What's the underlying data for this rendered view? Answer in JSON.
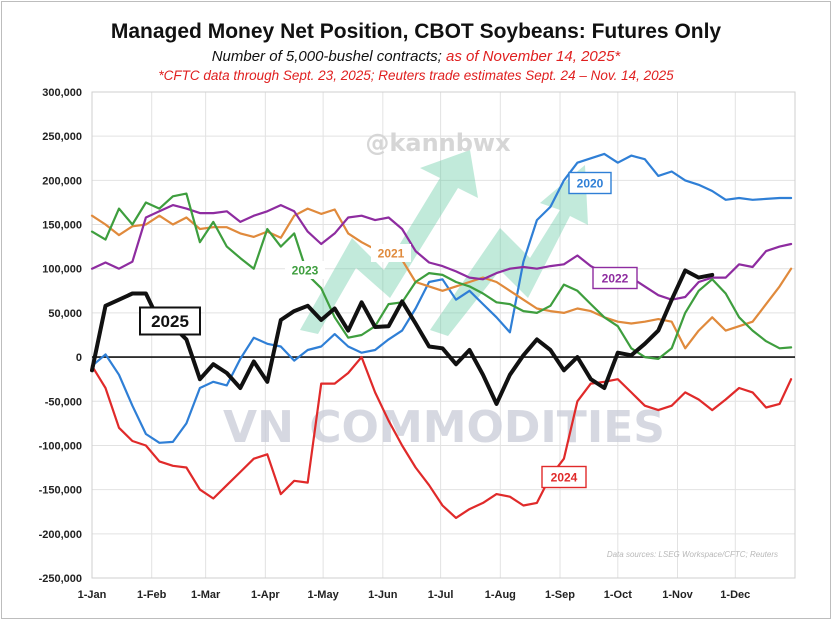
{
  "chart_data": {
    "type": "line",
    "title": "Managed Money Net Position, CBOT Soybeans: Futures Only",
    "subtitle_black": "Number of 5,000-bushel contracts;",
    "subtitle_red": "as of November 14, 2025*",
    "note": "*CFTC data through Sept. 23, 2025; Reuters trade estimates Sept. 24 – Nov. 14, 2025",
    "source": "Data sources: LSEG Workspace/CFTC; Reuters",
    "watermark_handle": "@kannbwx",
    "watermark_brand": "VN COMMODITIES",
    "ylim": [
      -250000,
      300000
    ],
    "yticks": [
      -250000,
      -200000,
      -150000,
      -100000,
      -50000,
      0,
      50000,
      100000,
      150000,
      200000,
      250000,
      300000
    ],
    "ytick_labels": [
      "-250,000",
      "-200,000",
      "-150,000",
      "-100,000",
      "-50,000",
      "0",
      "50,000",
      "100,000",
      "150,000",
      "200,000",
      "250,000",
      "300,000"
    ],
    "xlim_day": [
      0,
      365
    ],
    "xticks": [
      {
        "day": 0,
        "label": "1-Jan"
      },
      {
        "day": 31,
        "label": "1-Feb"
      },
      {
        "day": 59,
        "label": "1-Mar"
      },
      {
        "day": 90,
        "label": "1-Apr"
      },
      {
        "day": 120,
        "label": "1-May"
      },
      {
        "day": 151,
        "label": "1-Jun"
      },
      {
        "day": 181,
        "label": "1-Jul"
      },
      {
        "day": 212,
        "label": "1-Aug"
      },
      {
        "day": 243,
        "label": "1-Sep"
      },
      {
        "day": 273,
        "label": "1-Oct"
      },
      {
        "day": 304,
        "label": "1-Nov"
      },
      {
        "day": 334,
        "label": "1-Dec"
      }
    ],
    "series": [
      {
        "name": "2020",
        "color": "#2f7fd6",
        "width": 2.2,
        "x": [
          0,
          7,
          14,
          21,
          28,
          35,
          42,
          49,
          56,
          63,
          70,
          77,
          84,
          91,
          98,
          105,
          112,
          119,
          126,
          133,
          140,
          147,
          154,
          161,
          168,
          175,
          182,
          189,
          196,
          203,
          210,
          217,
          224,
          231,
          238,
          245,
          252,
          259,
          266,
          273,
          280,
          287,
          294,
          301,
          308,
          315,
          322,
          329,
          336,
          343,
          350,
          357,
          363
        ],
        "y": [
          -10000,
          3000,
          -20000,
          -55000,
          -87000,
          -97000,
          -96000,
          -75000,
          -35000,
          -28000,
          -32000,
          -2000,
          22000,
          15000,
          12000,
          -4000,
          8000,
          12000,
          26000,
          12000,
          5000,
          8000,
          20000,
          30000,
          55000,
          85000,
          88000,
          65000,
          75000,
          60000,
          45000,
          28000,
          108000,
          155000,
          170000,
          200000,
          220000,
          225000,
          230000,
          220000,
          228000,
          224000,
          205000,
          210000,
          200000,
          195000,
          188000,
          178000,
          180000,
          178000,
          179000,
          180000,
          180000
        ]
      },
      {
        "name": "2021",
        "color": "#e08a3c",
        "width": 2.2,
        "x": [
          0,
          7,
          14,
          21,
          28,
          35,
          42,
          49,
          56,
          63,
          70,
          77,
          84,
          91,
          98,
          105,
          112,
          119,
          126,
          133,
          140,
          147,
          154,
          161,
          168,
          175,
          182,
          189,
          196,
          203,
          210,
          217,
          224,
          231,
          238,
          245,
          252,
          259,
          266,
          273,
          280,
          287,
          294,
          301,
          308,
          315,
          322,
          329,
          336,
          343,
          350,
          357,
          363
        ],
        "y": [
          160000,
          150000,
          138000,
          148000,
          150000,
          160000,
          150000,
          158000,
          145000,
          147000,
          147000,
          140000,
          136000,
          142000,
          135000,
          160000,
          168000,
          162000,
          167000,
          140000,
          130000,
          122000,
          118000,
          110000,
          85000,
          80000,
          75000,
          80000,
          85000,
          90000,
          85000,
          75000,
          65000,
          55000,
          52000,
          50000,
          55000,
          52000,
          45000,
          40000,
          38000,
          40000,
          43000,
          40000,
          10000,
          30000,
          45000,
          30000,
          35000,
          40000,
          60000,
          80000,
          100000
        ]
      },
      {
        "name": "2022",
        "color": "#8e2ca0",
        "width": 2.2,
        "x": [
          0,
          7,
          14,
          21,
          28,
          35,
          42,
          49,
          56,
          63,
          70,
          77,
          84,
          91,
          98,
          105,
          112,
          119,
          126,
          133,
          140,
          147,
          154,
          161,
          168,
          175,
          182,
          189,
          196,
          203,
          210,
          217,
          224,
          231,
          238,
          245,
          252,
          259,
          266,
          273,
          280,
          287,
          294,
          301,
          308,
          315,
          322,
          329,
          336,
          343,
          350,
          357,
          363
        ],
        "y": [
          100000,
          107000,
          100000,
          108000,
          158000,
          165000,
          172000,
          168000,
          163000,
          163000,
          165000,
          153000,
          160000,
          165000,
          172000,
          165000,
          142000,
          128000,
          140000,
          158000,
          160000,
          155000,
          158000,
          145000,
          120000,
          107000,
          103000,
          97000,
          90000,
          88000,
          95000,
          100000,
          102000,
          100000,
          103000,
          105000,
          115000,
          103000,
          95000,
          92000,
          90000,
          80000,
          70000,
          65000,
          68000,
          85000,
          90000,
          90000,
          105000,
          102000,
          120000,
          125000,
          128000
        ]
      },
      {
        "name": "2023",
        "color": "#3e9e3e",
        "width": 2.2,
        "x": [
          0,
          7,
          14,
          21,
          28,
          35,
          42,
          49,
          56,
          63,
          70,
          77,
          84,
          91,
          98,
          105,
          112,
          119,
          126,
          133,
          140,
          147,
          154,
          161,
          168,
          175,
          182,
          189,
          196,
          203,
          210,
          217,
          224,
          231,
          238,
          245,
          252,
          259,
          266,
          273,
          280,
          287,
          294,
          301,
          308,
          315,
          322,
          329,
          336,
          343,
          350,
          357,
          363
        ],
        "y": [
          142000,
          133000,
          168000,
          150000,
          175000,
          168000,
          182000,
          185000,
          130000,
          153000,
          125000,
          112000,
          100000,
          145000,
          125000,
          140000,
          93000,
          78000,
          45000,
          22000,
          25000,
          35000,
          60000,
          62000,
          85000,
          95000,
          93000,
          85000,
          80000,
          72000,
          62000,
          60000,
          52000,
          50000,
          58000,
          82000,
          75000,
          60000,
          45000,
          35000,
          10000,
          0,
          -2000,
          10000,
          50000,
          75000,
          88000,
          72000,
          45000,
          30000,
          18000,
          10000,
          11000
        ]
      },
      {
        "name": "2024",
        "color": "#e02a2a",
        "width": 2.2,
        "x": [
          0,
          7,
          14,
          21,
          28,
          35,
          42,
          49,
          56,
          63,
          70,
          77,
          84,
          91,
          98,
          105,
          112,
          119,
          126,
          133,
          140,
          147,
          154,
          161,
          168,
          175,
          182,
          189,
          196,
          203,
          210,
          217,
          224,
          231,
          238,
          245,
          252,
          259,
          266,
          273,
          280,
          287,
          294,
          301,
          308,
          315,
          322,
          329,
          336,
          343,
          350,
          357,
          363
        ],
        "y": [
          -10000,
          -35000,
          -80000,
          -95000,
          -100000,
          -118000,
          -123000,
          -125000,
          -150000,
          -160000,
          -145000,
          -130000,
          -115000,
          -110000,
          -155000,
          -140000,
          -142000,
          -30000,
          -30000,
          -18000,
          0,
          -40000,
          -72000,
          -100000,
          -125000,
          -145000,
          -168000,
          -182000,
          -172000,
          -165000,
          -155000,
          -158000,
          -168000,
          -165000,
          -135000,
          -115000,
          -50000,
          -30000,
          -28000,
          -25000,
          -40000,
          -55000,
          -60000,
          -55000,
          -40000,
          -48000,
          -60000,
          -48000,
          -35000,
          -40000,
          -57000,
          -53000,
          -25000
        ]
      },
      {
        "name": "2025",
        "color": "#111111",
        "width": 4,
        "x": [
          0,
          7,
          14,
          21,
          28,
          35,
          42,
          49,
          56,
          63,
          70,
          77,
          84,
          91,
          98,
          105,
          112,
          119,
          126,
          133,
          140,
          147,
          154,
          161,
          168,
          175,
          182,
          189,
          196,
          203,
          210,
          217,
          224,
          231,
          238,
          245,
          252,
          259,
          266,
          273,
          280,
          287,
          294,
          301,
          308,
          315,
          322
        ],
        "y": [
          -15000,
          58000,
          65000,
          72000,
          72000,
          40000,
          35000,
          20000,
          -25000,
          -8000,
          -18000,
          -35000,
          -5000,
          -28000,
          42000,
          52000,
          58000,
          42000,
          55000,
          30000,
          62000,
          34000,
          35000,
          63000,
          38000,
          12000,
          10000,
          -8000,
          8000,
          -20000,
          -53000,
          -20000,
          2000,
          20000,
          8000,
          -15000,
          0,
          -25000,
          -35000,
          5000,
          2000,
          15000,
          30000,
          65000,
          98000,
          90000,
          93000
        ]
      }
    ],
    "series_labels": [
      {
        "name": "2020",
        "text": "2020",
        "color": "#2f7fd6",
        "boxed": true
      },
      {
        "name": "2021",
        "text": "2021",
        "color": "#e08a3c",
        "boxed": false
      },
      {
        "name": "2022",
        "text": "2022",
        "color": "#8e2ca0",
        "boxed": true
      },
      {
        "name": "2023",
        "text": "2023",
        "color": "#3e9e3e",
        "boxed": false
      },
      {
        "name": "2024",
        "text": "2024",
        "color": "#e02a2a",
        "boxed": true
      },
      {
        "name": "2025",
        "text": "2025",
        "color": "#111111",
        "boxed": true
      }
    ]
  }
}
